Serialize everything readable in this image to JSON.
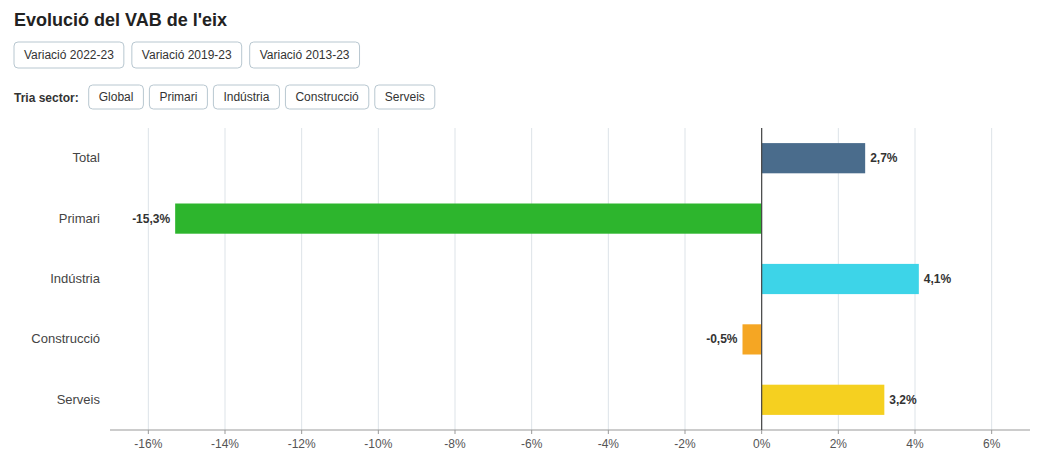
{
  "chart_data": {
    "type": "bar",
    "orientation": "horizontal",
    "title": "Evolució del VAB de l'eix",
    "annotations": [
      "Variació 2022-23",
      "Variació 2019-23",
      "Variació 2013-23",
      "Tria sector:",
      "Global",
      "Primari",
      "Indústria",
      "Construcció",
      "Serveis"
    ],
    "categories": [
      "Total",
      "Primari",
      "Indústria",
      "Construcció",
      "Serveis"
    ],
    "values": [
      2.7,
      -15.3,
      4.1,
      -0.5,
      3.2
    ],
    "value_labels": [
      "2,7%",
      "-15,3%",
      "4,1%",
      "-0,5%",
      "3,2%"
    ],
    "colors": [
      "#4a6c8c",
      "#2db52d",
      "#3dd4e8",
      "#f5a623",
      "#f5d020"
    ],
    "xlim": [
      -17,
      7
    ],
    "xticks": [
      {
        "value": -16,
        "label": "-16%"
      },
      {
        "value": -14,
        "label": "-14%"
      },
      {
        "value": -12,
        "label": "-12%"
      },
      {
        "value": -10,
        "label": "-10%"
      },
      {
        "value": -8,
        "label": "-8%"
      },
      {
        "value": -6,
        "label": "-6%"
      },
      {
        "value": -4,
        "label": "-4%"
      },
      {
        "value": -2,
        "label": "-2%"
      },
      {
        "value": 0,
        "label": "0%"
      },
      {
        "value": 2,
        "label": "2%"
      },
      {
        "value": 4,
        "label": "4%"
      },
      {
        "value": 6,
        "label": "6%"
      }
    ],
    "grid": true,
    "data_labels": true
  }
}
